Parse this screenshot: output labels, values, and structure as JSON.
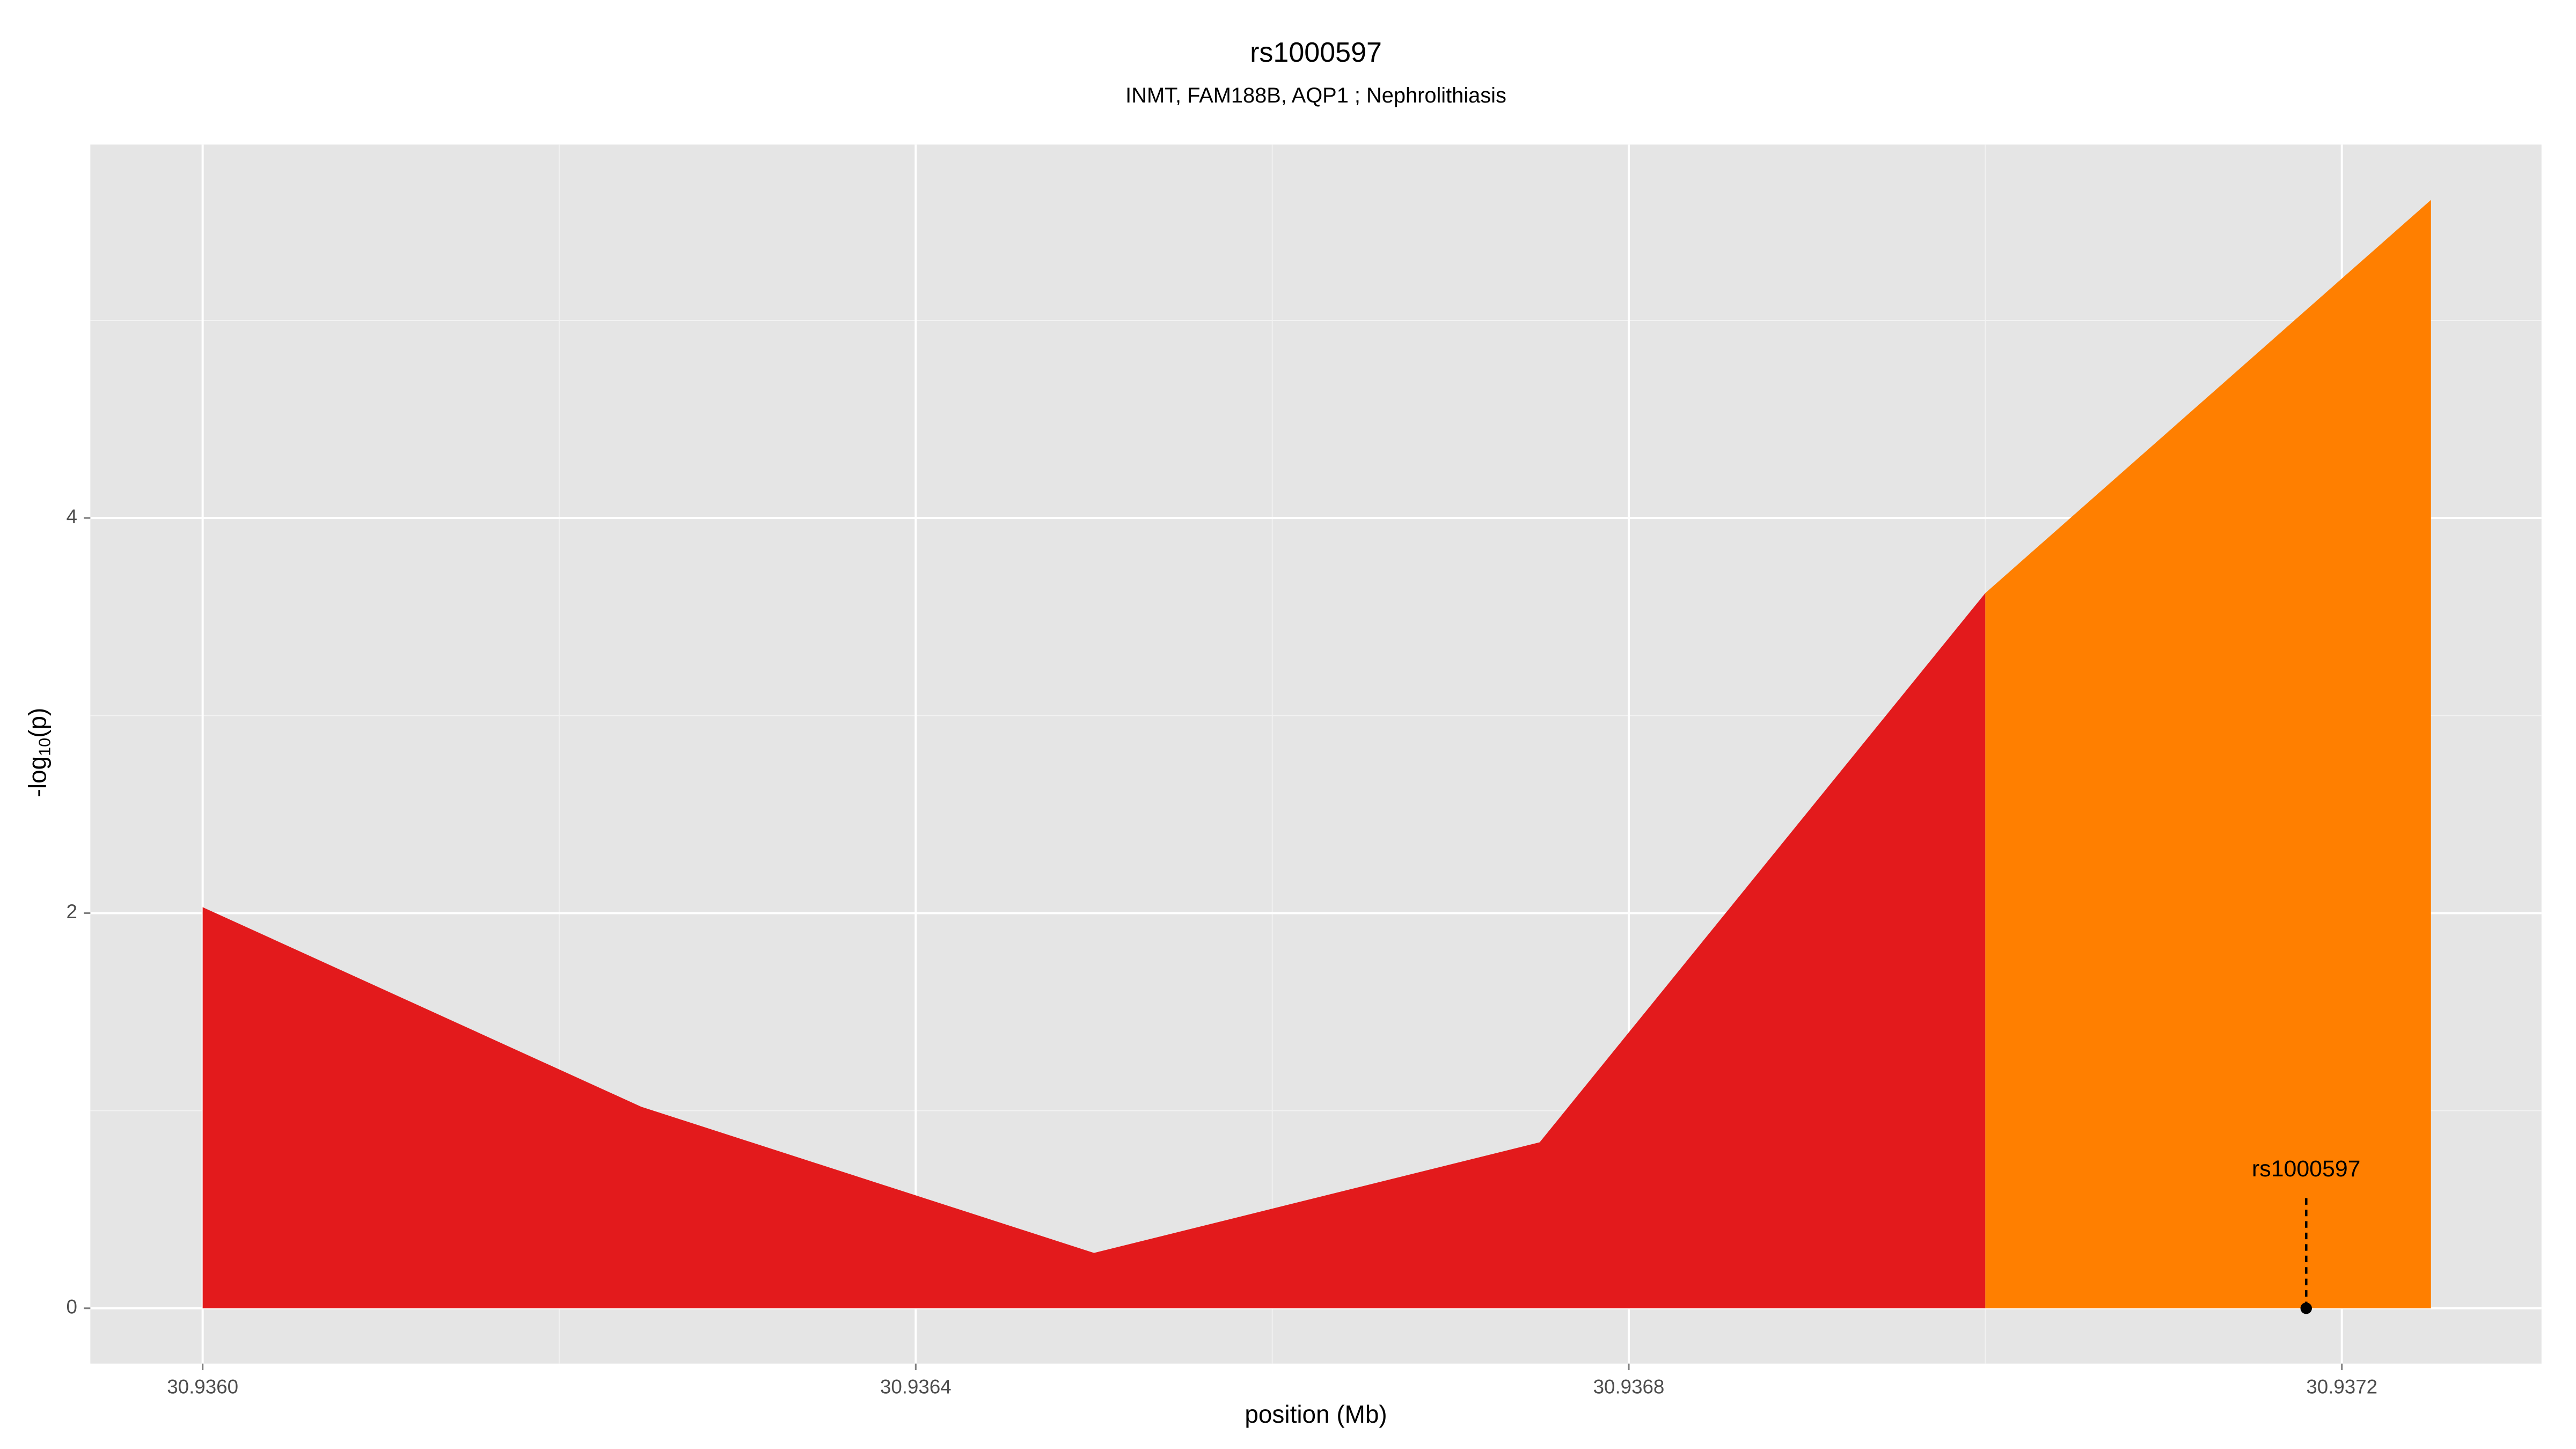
{
  "chart_data": {
    "type": "area",
    "title": "rs1000597",
    "subtitle": "INMT, FAM188B, AQP1 ; Nephrolithiasis",
    "x_label": "position (Mb)",
    "y_label_parts": [
      "-log",
      "10",
      "(p)"
    ],
    "series": [
      {
        "color": "#e31a1c",
        "x": [
          30.936,
          30.936246,
          30.9365,
          30.93675,
          30.937
        ],
        "values": [
          2.03,
          1.02,
          0.28,
          0.84,
          3.62
        ]
      },
      {
        "color": "#ff7f00",
        "x": [
          30.937,
          30.93725
        ],
        "values": [
          3.62,
          5.61
        ]
      }
    ],
    "annotation": {
      "label": "rs1000597",
      "x": 30.93718,
      "y": 0
    },
    "xlim": [
      30.935937,
      30.937312
    ],
    "ylim": [
      -0.28,
      5.89
    ],
    "xticks": [
      {
        "value": 30.936,
        "label": "30.9360"
      },
      {
        "value": 30.9364,
        "label": "30.9364"
      },
      {
        "value": 30.9368,
        "label": "30.9368"
      },
      {
        "value": 30.9372,
        "label": "30.9372"
      }
    ],
    "yticks": [
      0,
      2,
      4
    ],
    "grid": true
  }
}
